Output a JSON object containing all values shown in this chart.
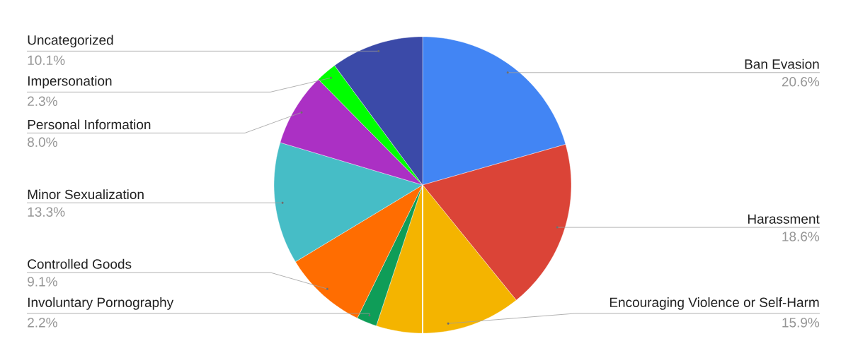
{
  "chart_data": {
    "type": "pie",
    "categories": [
      "Ban Evasion",
      "Harassment",
      "Encouraging Violence or Self-Harm",
      "Involuntary Pornography",
      "Controlled Goods",
      "Minor Sexualization",
      "Personal Information",
      "Impersonation",
      "Uncategorized"
    ],
    "values": [
      20.6,
      18.6,
      15.9,
      2.2,
      9.1,
      13.3,
      8.0,
      2.3,
      10.1
    ],
    "value_labels": [
      "20.6%",
      "18.6%",
      "15.9%",
      "2.2%",
      "9.1%",
      "13.3%",
      "8.0%",
      "2.3%",
      "10.1%"
    ],
    "colors": [
      "#4285f4",
      "#db4437",
      "#f4b400",
      "#0f9d58",
      "#ff6d01",
      "#46bdc6",
      "#ab30c4",
      "#00ff00",
      "#3b4aa8"
    ]
  }
}
